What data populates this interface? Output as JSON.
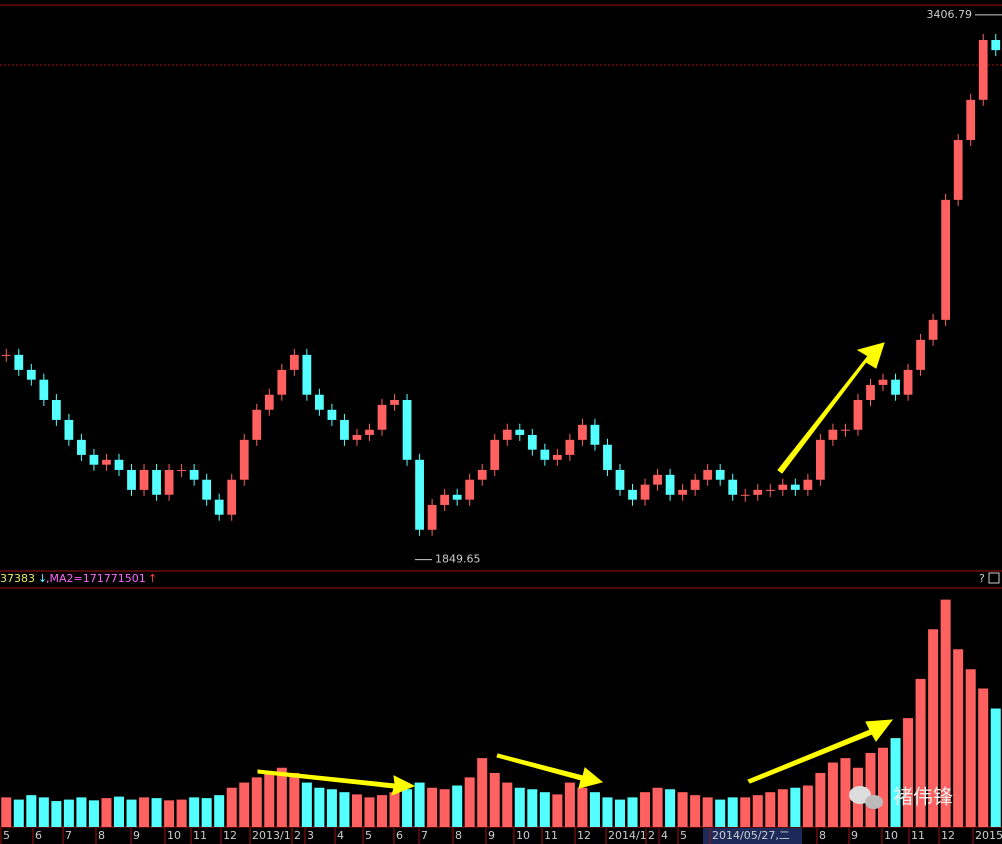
{
  "chart_data": {
    "type": "candlestick",
    "closes": [
      2435,
      2392,
      2364,
      2306,
      2249,
      2192,
      2149,
      2121,
      2135,
      2106,
      2049,
      2106,
      2035,
      2106,
      2106,
      2078,
      2021,
      1978,
      2078,
      2192,
      2278,
      2321,
      2392,
      2435,
      2321,
      2278,
      2249,
      2192,
      2206,
      2221,
      2292,
      2306,
      2135,
      1935,
      2006,
      2035,
      2021,
      2078,
      2106,
      2192,
      2221,
      2206,
      2164,
      2135,
      2149,
      2192,
      2235,
      2178,
      2106,
      2049,
      2021,
      2064,
      2092,
      2035,
      2049,
      2078,
      2106,
      2078,
      2035,
      2035,
      2049,
      2049,
      2064,
      2049,
      2078,
      2192,
      2221,
      2221,
      2306,
      2349,
      2364,
      2321,
      2392,
      2478,
      2535,
      2878,
      3049,
      3164,
      3335,
      3306
    ],
    "volumes": [
      40000000,
      37000000,
      43000000,
      40000000,
      35000000,
      37000000,
      40000000,
      36000000,
      39000000,
      41000000,
      37000000,
      40000000,
      39000000,
      36000000,
      37000000,
      40000000,
      39000000,
      43000000,
      53000000,
      60000000,
      67000000,
      73000000,
      80000000,
      73000000,
      60000000,
      53000000,
      51000000,
      47000000,
      44000000,
      40000000,
      43000000,
      47000000,
      51000000,
      60000000,
      53000000,
      51000000,
      56000000,
      67000000,
      93000000,
      73000000,
      60000000,
      53000000,
      51000000,
      47000000,
      44000000,
      60000000,
      53000000,
      47000000,
      40000000,
      37000000,
      40000000,
      47000000,
      53000000,
      51000000,
      47000000,
      43000000,
      40000000,
      37000000,
      40000000,
      40000000,
      43000000,
      47000000,
      51000000,
      53000000,
      56000000,
      73000000,
      87000000,
      93000000,
      80000000,
      100000000,
      107000000,
      120000000,
      147000000,
      200000000,
      267000000,
      307000000,
      240000000,
      213000000,
      187000000,
      160000000
    ],
    "ylim": [
      1820,
      3435
    ],
    "vlim": [
      0,
      320000000
    ],
    "high_label": 3406.79,
    "low_label": 1849.65,
    "vol_text": "37383",
    "vol_arrow": "↓",
    "ma2_text": ",MA2=171771501",
    "ma2_arrow": "↑",
    "help": "?",
    "x_labels": [
      "5",
      "6",
      "7",
      "8",
      "9",
      "10",
      "11",
      "12",
      "2013/1",
      "2",
      "3",
      "4",
      "5",
      "6",
      "7",
      "8",
      "9",
      "10",
      "11",
      "12",
      "2014/1",
      "2",
      "4",
      "5",
      "2014/05/27,二",
      "8",
      "9",
      "10",
      "11",
      "12",
      "2015"
    ],
    "up_color": "#ff6060",
    "down_color": "#54ffff",
    "watermark": "褚伟锋"
  }
}
